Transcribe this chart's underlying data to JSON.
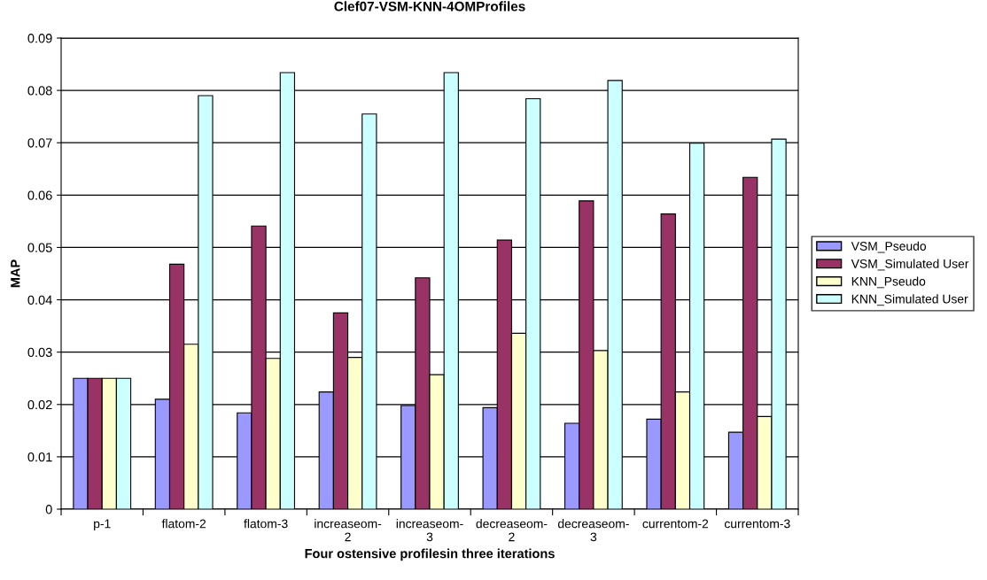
{
  "chart_data": {
    "type": "bar",
    "title": "Clef07-VSM-KNN-4OMProfiles",
    "xlabel": "Four ostensive profilesin three iterations",
    "ylabel": "MAP",
    "categories": [
      "p-1",
      "flatom-2",
      "flatom-3",
      "increaseom-\n2",
      "increaseom-\n3",
      "decreaseom-\n2",
      "decreaseom-\n3",
      "currentom-2",
      "currentom-3"
    ],
    "series": [
      {
        "name": "VSM_Pseudo",
        "color": "#9999ff",
        "values": [
          0.025,
          0.021,
          0.0184,
          0.0224,
          0.0198,
          0.0194,
          0.0164,
          0.0172,
          0.0147
        ]
      },
      {
        "name": "VSM_Simulated User",
        "color": "#993366",
        "values": [
          0.025,
          0.0468,
          0.0541,
          0.0375,
          0.0442,
          0.0514,
          0.0589,
          0.0564,
          0.0634
        ]
      },
      {
        "name": "KNN_Pseudo",
        "color": "#ffffcc",
        "values": [
          0.025,
          0.0315,
          0.0288,
          0.029,
          0.0257,
          0.0336,
          0.0303,
          0.0224,
          0.0177
        ]
      },
      {
        "name": "KNN_Simulated User",
        "color": "#ccffff",
        "values": [
          0.025,
          0.079,
          0.0834,
          0.0755,
          0.0834,
          0.0784,
          0.0819,
          0.0699,
          0.0707
        ]
      }
    ],
    "ylim": [
      0,
      0.09
    ],
    "yticks": [
      0,
      0.01,
      0.02,
      0.03,
      0.04,
      0.05,
      0.06,
      0.07,
      0.08,
      0.09
    ],
    "grid": "y",
    "legend": "right"
  }
}
